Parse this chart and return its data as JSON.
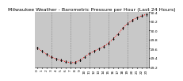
{
  "title": "Milwaukee Weather - Barometric Pressure per Hour (Last 24 Hours)",
  "background_color": "#ffffff",
  "plot_bg_color": "#c8c8c8",
  "grid_color": "#888888",
  "x_hours": [
    0,
    1,
    2,
    3,
    4,
    5,
    6,
    7,
    8,
    9,
    10,
    11,
    12,
    13,
    14,
    15,
    16,
    17,
    18,
    19,
    20,
    21,
    22,
    23
  ],
  "pressure": [
    29.62,
    29.55,
    29.48,
    29.42,
    29.38,
    29.35,
    29.32,
    29.3,
    29.3,
    29.35,
    29.42,
    29.5,
    29.55,
    29.6,
    29.65,
    29.72,
    29.82,
    29.92,
    30.05,
    30.15,
    30.22,
    30.28,
    30.32,
    30.35
  ],
  "line_color": "#ff0000",
  "marker_color": "#000000",
  "ylim": [
    29.2,
    30.4
  ],
  "ytick_values": [
    29.2,
    29.4,
    29.6,
    29.8,
    30.0,
    30.2,
    30.4
  ],
  "ytick_labels": [
    "29.2",
    "29.4",
    "29.6",
    "29.8",
    "30.0",
    "30.2",
    "30.4"
  ],
  "title_fontsize": 4.5,
  "tick_fontsize": 3.2,
  "line_width": 0.7,
  "marker_size": 2.0,
  "vgrid_positions": [
    3,
    7,
    11,
    15,
    19,
    23
  ],
  "x_tick_every": 1,
  "xlim": [
    -0.5,
    23.5
  ]
}
